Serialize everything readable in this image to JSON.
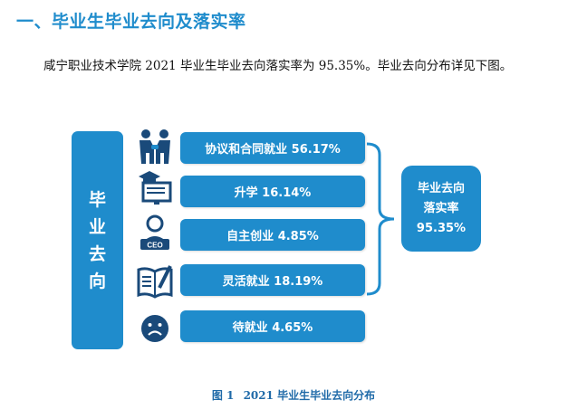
{
  "heading": "一、毕业生毕业去向及落实率",
  "paragraph": "咸宁职业技术学院 2021 毕业生毕业去向落实率为 95.35%。毕业去向分布详见下图。",
  "left_column": [
    "毕",
    "业",
    "去",
    "向"
  ],
  "bars": [
    {
      "label": "协议和合同就业 56.17%",
      "icon": "handshake-icon"
    },
    {
      "label": "升学 16.14%",
      "icon": "graduation-cap-icon"
    },
    {
      "label": "自主创业 4.85%",
      "icon": "ceo-icon"
    },
    {
      "label": "灵活就业 18.19%",
      "icon": "notebook-pen-icon"
    },
    {
      "label": "待就业 4.65%",
      "icon": "sad-face-icon"
    }
  ],
  "rate_box": {
    "line1": "毕业去向",
    "line2": "落实率",
    "line3": "95.35%"
  },
  "caption": {
    "fig": "图 1",
    "text": "2021 毕业生毕业去向分布"
  },
  "colors": {
    "accent": "#1f8ccc",
    "icon": "#1a4a7a"
  }
}
